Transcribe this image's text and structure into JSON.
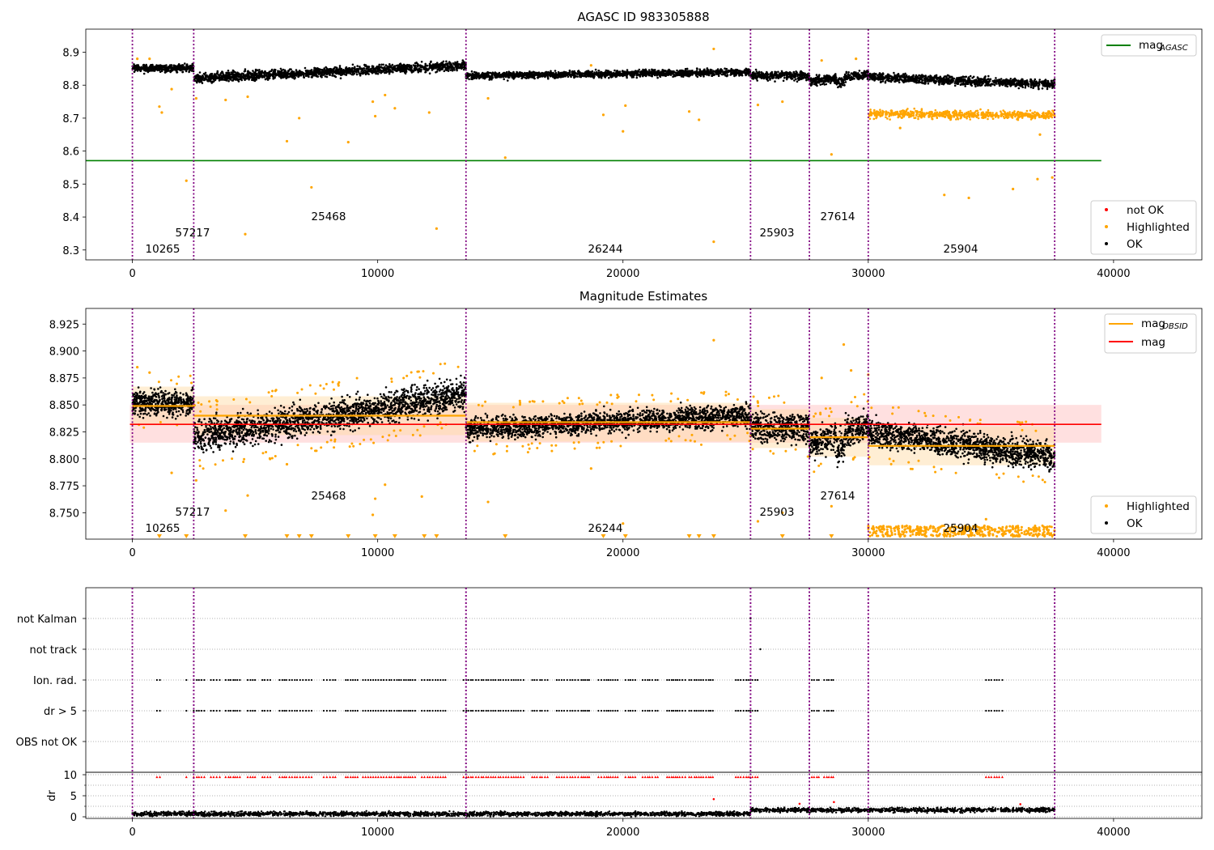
{
  "chart_data": [
    {
      "type": "scatter",
      "title": "AGASC ID 983305888",
      "xlim": [
        -1900,
        43600
      ],
      "ylim": [
        8.27,
        8.97
      ],
      "xticks": [
        "0",
        "10000",
        "20000",
        "30000",
        "40000"
      ],
      "yticks": [
        "8.3",
        "8.4",
        "8.5",
        "8.6",
        "8.7",
        "8.8",
        "8.9"
      ],
      "grid": false,
      "legend_lines": [
        {
          "label": "mag",
          "sub": "AGASC",
          "color": "#008000"
        }
      ],
      "legend_points": [
        {
          "label": "not OK",
          "color": "#ff0000"
        },
        {
          "label": "Highlighted",
          "color": "#ffa500"
        },
        {
          "label": "OK",
          "color": "#000000"
        }
      ],
      "hline": {
        "y": 8.571,
        "x": [
          -1900,
          39500
        ],
        "color": "#008000"
      },
      "obsid_labels": [
        "10265",
        "57217",
        "25468",
        "26244",
        "25903",
        "27614",
        "25904"
      ]
    },
    {
      "type": "scatter",
      "title": "Magnitude Estimates",
      "xlim": [
        -1900,
        43600
      ],
      "ylim": [
        8.7255,
        8.9395
      ],
      "xticks": [
        "0",
        "10000",
        "20000",
        "30000",
        "40000"
      ],
      "yticks": [
        "8.750",
        "8.775",
        "8.800",
        "8.825",
        "8.850",
        "8.875",
        "8.900",
        "8.925"
      ],
      "grid": false,
      "legend_lines": [
        {
          "label": "mag",
          "sub": "OBSID",
          "color": "#ffa500"
        },
        {
          "label": "mag",
          "sub": "",
          "color": "#ff0000"
        }
      ],
      "legend_points": [
        {
          "label": "Highlighted",
          "color": "#ffa500"
        },
        {
          "label": "OK",
          "color": "#000000"
        }
      ],
      "mean_mag": 8.832,
      "mean_band": [
        8.815,
        8.85
      ],
      "obsid_means": [
        {
          "x0": 0,
          "x1": 2500,
          "mag": 8.849
        },
        {
          "x0": 2500,
          "x1": 13600,
          "mag": 8.84
        },
        {
          "x0": 13600,
          "x1": 25200,
          "mag": 8.834
        },
        {
          "x0": 25200,
          "x1": 27600,
          "mag": 8.828
        },
        {
          "x0": 27600,
          "x1": 30000,
          "mag": 8.82
        },
        {
          "x0": 30000,
          "x1": 37600,
          "mag": 8.812
        }
      ],
      "obsid_labels": [
        "10265",
        "57217",
        "25468",
        "26244",
        "25903",
        "27614",
        "25904"
      ]
    },
    {
      "type": "scatter",
      "xlim": [
        -1900,
        43600
      ],
      "flag_labels": [
        "not Kalman",
        "not track",
        "Ion. rad.",
        "dr > 5",
        "OBS not OK"
      ],
      "ylabel": "dr",
      "dr_yticks": [
        "0",
        "5",
        "10"
      ],
      "xticks": [
        "0",
        "10000",
        "20000",
        "30000",
        "40000"
      ]
    }
  ],
  "obsid_boundaries": [
    0,
    2500,
    13600,
    25200,
    27600,
    30000,
    37600
  ],
  "colors": {
    "ok": "#000000",
    "highlighted": "#ffa500",
    "not_ok": "#ff0000",
    "boundary": "#800080",
    "agasc_line": "#008000",
    "mean_line": "#ff0000",
    "band": "#ffcccc",
    "obsid_line": "#ffa500"
  }
}
